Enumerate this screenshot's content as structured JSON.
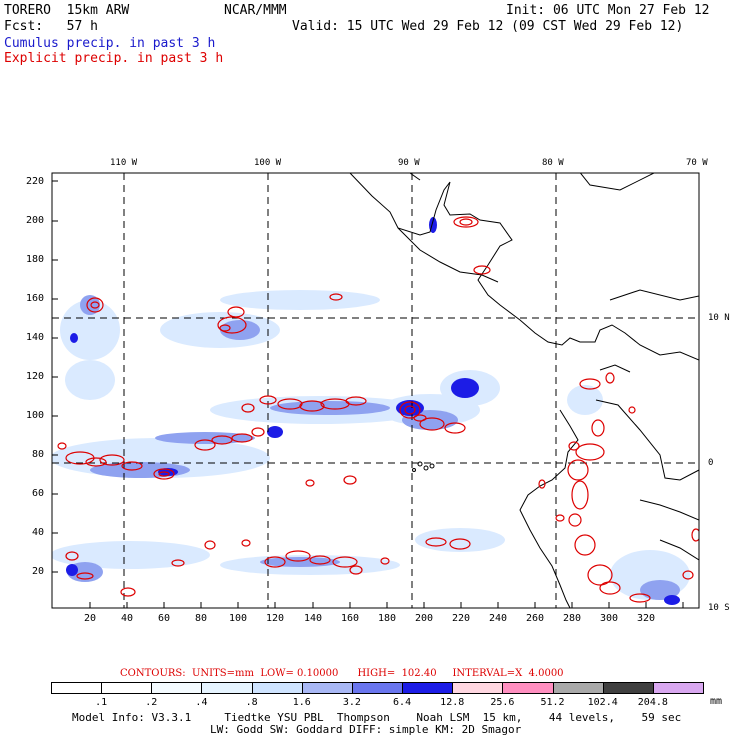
{
  "header": {
    "model": "TORERO  15km ARW",
    "org": "NCAR/MMM",
    "init": "Init: 06 UTC Mon 27 Feb 12",
    "fcst": "Fcst:   57 h",
    "valid": "Valid: 15 UTC Wed 29 Feb 12 (09 CST Wed 29 Feb 12)",
    "cumulus_label": "Cumulus precip. in past 3 h",
    "explicit_label": "Explicit precip. in past 3 h"
  },
  "colors": {
    "cumulus": "#1a1acc",
    "explicit": "#dd0000",
    "coast": "#000000"
  },
  "map": {
    "lon_labels": [
      "110 W",
      "100 W",
      "90 W",
      "80 W",
      "70 W"
    ],
    "lat_labels": [
      "10 N",
      "0",
      "10 S"
    ],
    "y_ticks": [
      "220",
      "200",
      "180",
      "160",
      "140",
      "120",
      "100",
      "80",
      "60",
      "40",
      "20"
    ],
    "x_ticks": [
      "20",
      "40",
      "60",
      "80",
      "100",
      "120",
      "140",
      "160",
      "180",
      "200",
      "220",
      "240",
      "260",
      "280",
      "300",
      "320"
    ]
  },
  "contours": {
    "text": "CONTOURS:  UNITS=mm  LOW= 0.10000      HIGH=  102.40     INTERVAL=X  4.0000"
  },
  "legend": {
    "unit": "mm",
    "labels": [
      ".1",
      ".2",
      ".4",
      ".8",
      "1.6",
      "3.2",
      "6.4",
      "12.8",
      "25.6",
      "51.2",
      "102.4",
      "204.8"
    ],
    "colors": [
      "#ffffff",
      "#ffffff",
      "#f4fbff",
      "#e6f4ff",
      "#cfe4ff",
      "#a9b8f5",
      "#6a76ee",
      "#1c1ce6",
      "#ffd7e1",
      "#ff8fc0",
      "#a9a9a9",
      "#404040",
      "#d9a8f0"
    ]
  },
  "footer": {
    "line1": "Model Info: V3.3.1     Tiedtke YSU PBL  Thompson    Noah LSM  15 km,    44 levels,    59 sec",
    "line2": "LW: Godd SW: Goddard DIFF: simple KM: 2D Smagor"
  }
}
